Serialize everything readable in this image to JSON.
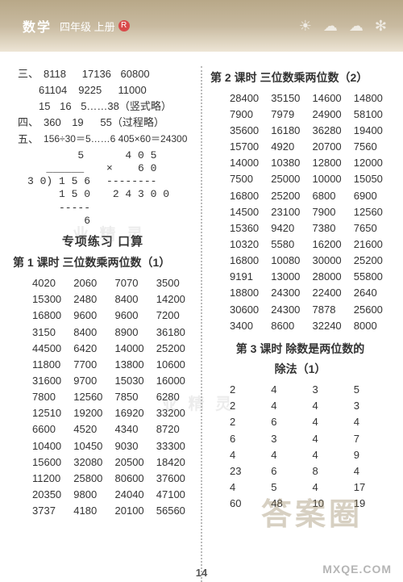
{
  "header": {
    "subject": "数学",
    "grade": "四年级 上册",
    "badge": "R"
  },
  "left": {
    "sec3": {
      "label": "三、",
      "rows": [
        [
          "8118",
          "17136",
          "60800",
          ""
        ],
        [
          "61104",
          "9225",
          "11000",
          ""
        ],
        [
          "15",
          "16",
          "5……38（竖式略）",
          ""
        ]
      ]
    },
    "sec4": {
      "label": "四、",
      "rows": [
        [
          "360",
          "19",
          "55（过程略）",
          ""
        ]
      ]
    },
    "sec5": {
      "label": "五、",
      "line": "156÷30＝5……6    405×60＝24300",
      "calc_left": "        5\n   ______\n3 0) 1 5 6\n     1 5 0\n     -----\n         6",
      "calc_right": "   4 0 5\n×    6 0\n--------\n 2 4 3 0 0"
    },
    "special_title": "专项练习    口算",
    "lesson1_title": "第 1 课时  三位数乘两位数（1）",
    "lesson1_rows": [
      [
        "4020",
        "2060",
        "7070",
        "3500"
      ],
      [
        "15300",
        "2480",
        "8400",
        "14200"
      ],
      [
        "16800",
        "9600",
        "9600",
        "7200"
      ],
      [
        "3150",
        "8400",
        "8900",
        "36180"
      ],
      [
        "44500",
        "6420",
        "14000",
        "25200"
      ],
      [
        "11800",
        "7700",
        "13800",
        "10600"
      ],
      [
        "31600",
        "9700",
        "15030",
        "16000"
      ],
      [
        "7800",
        "12560",
        "7850",
        "6280"
      ],
      [
        "12510",
        "19200",
        "16920",
        "33200"
      ],
      [
        "6600",
        "4520",
        "4340",
        "8720"
      ],
      [
        "10400",
        "10450",
        "9030",
        "33300"
      ],
      [
        "15600",
        "32080",
        "20500",
        "18420"
      ],
      [
        "11200",
        "25800",
        "80600",
        "37600"
      ],
      [
        "20350",
        "9800",
        "24040",
        "47100"
      ],
      [
        "3737",
        "4180",
        "20100",
        "56560"
      ]
    ]
  },
  "right": {
    "lesson2_title": "第 2 课时  三位数乘两位数（2）",
    "lesson2_rows": [
      [
        "28400",
        "35150",
        "14600",
        "14800"
      ],
      [
        "7900",
        "7979",
        "24900",
        "58100"
      ],
      [
        "35600",
        "16180",
        "36280",
        "19400"
      ],
      [
        "15700",
        "4920",
        "20700",
        "7560"
      ],
      [
        "14000",
        "10380",
        "12800",
        "12000"
      ],
      [
        "7500",
        "25000",
        "10000",
        "15050"
      ],
      [
        "16800",
        "25200",
        "6800",
        "6900"
      ],
      [
        "14500",
        "23100",
        "7900",
        "12560"
      ],
      [
        "15360",
        "9420",
        "7380",
        "7650"
      ],
      [
        "10320",
        "5580",
        "16200",
        "21600"
      ],
      [
        "16800",
        "10080",
        "30000",
        "25200"
      ],
      [
        "9191",
        "13000",
        "28000",
        "55800"
      ],
      [
        "18800",
        "24300",
        "22400",
        "2640"
      ],
      [
        "30600",
        "24300",
        "7878",
        "25600"
      ],
      [
        "3400",
        "8600",
        "32240",
        "8000"
      ]
    ],
    "lesson3_title_a": "第 3 课时  除数是两位数的",
    "lesson3_title_b": "除法（1）",
    "lesson3_rows": [
      [
        "2",
        "4",
        "3",
        "5"
      ],
      [
        "2",
        "4",
        "4",
        "3"
      ],
      [
        "2",
        "6",
        "4",
        "4"
      ],
      [
        "6",
        "3",
        "4",
        "7"
      ],
      [
        "4",
        "4",
        "4",
        "9"
      ],
      [
        "23",
        "6",
        "8",
        "4"
      ],
      [
        "4",
        "5",
        "4",
        "17"
      ],
      [
        "60",
        "48",
        "10",
        "19"
      ]
    ]
  },
  "pagenum": "14",
  "watermarks": {
    "big": "答案圈",
    "url": "MXQE.COM",
    "faint": "业 精 灵"
  }
}
